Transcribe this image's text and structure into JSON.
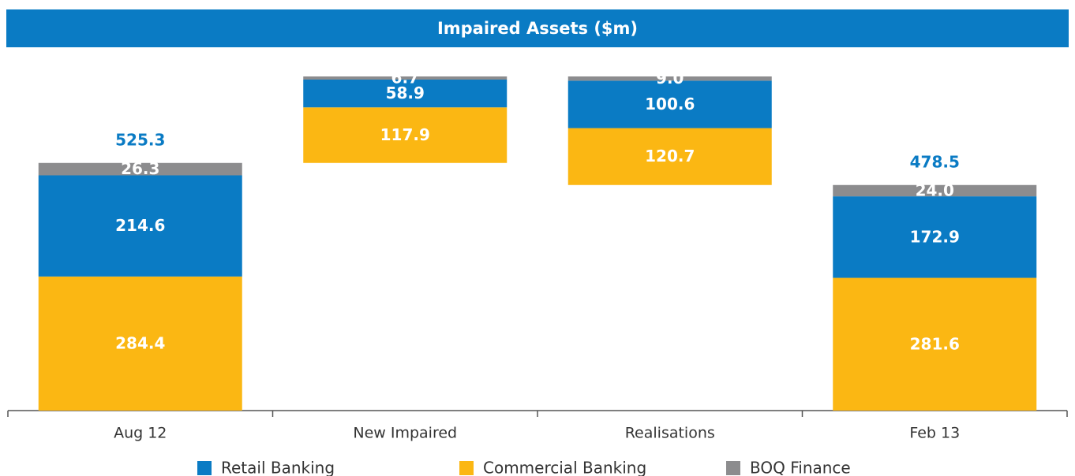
{
  "chart_data": {
    "type": "waterfall",
    "title": "Impaired Assets ($m)",
    "categories": [
      "Aug 12",
      "New Impaired",
      "Realisations",
      "Feb 13"
    ],
    "measure": [
      "absolute",
      "relative",
      "relative",
      "absolute"
    ],
    "series": [
      {
        "name": "Retail Banking",
        "color": "#0a7bc4",
        "values": [
          214.6,
          58.9,
          -100.6,
          172.9
        ],
        "value_labels": [
          "214.6",
          "58.9",
          "100.6",
          "172.9"
        ]
      },
      {
        "name": "Commercial Banking",
        "color": "#fbb713",
        "values": [
          284.4,
          117.9,
          -120.7,
          281.6
        ],
        "value_labels": [
          "284.4",
          "117.9",
          "120.7",
          "281.6"
        ]
      },
      {
        "name": "BOQ Finance",
        "color": "#8c8c8e",
        "values": [
          26.3,
          6.7,
          -9.0,
          24.0
        ],
        "value_labels": [
          "26.3",
          "6.7",
          "9.0",
          "24.0"
        ]
      }
    ],
    "totals": [
      525.3,
      null,
      null,
      478.5
    ],
    "total_color": "#0a7bc4"
  }
}
